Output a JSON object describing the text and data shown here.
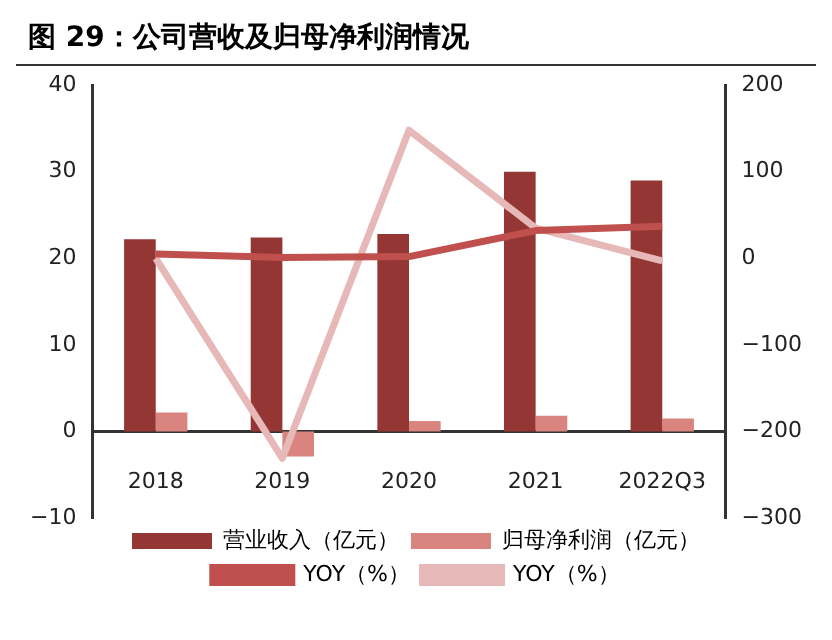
{
  "chart_data": {
    "type": "bar",
    "title": "图 29：公司营收及归母净利润情况",
    "categories": [
      "2018",
      "2019",
      "2020",
      "2021",
      "2022Q3"
    ],
    "series": [
      {
        "name": "营业收入（亿元）",
        "color": "#943634",
        "values": [
          22.2,
          22.4,
          22.8,
          30,
          29
        ]
      },
      {
        "name": "归母净利润（亿元）",
        "color": "#d9847f",
        "values": [
          2.2,
          -2.9,
          1.2,
          1.8,
          1.5
        ]
      },
      {
        "name": "YOY（%）",
        "type": "line",
        "axis": "y2",
        "color": "#c0504d",
        "values": [
          5,
          1,
          2,
          32,
          37
        ]
      },
      {
        "name": "YOY（%）",
        "type": "line",
        "axis": "y2",
        "color": "#e6b8b7",
        "values": [
          0,
          -231,
          148,
          35,
          -3
        ]
      }
    ],
    "ylim": [
      -10,
      40
    ],
    "yticks": [
      -10,
      0,
      10,
      20,
      30,
      40
    ],
    "y2lim": [
      -300,
      200
    ],
    "y2ticks": [
      -300,
      -200,
      -100,
      0,
      100,
      200
    ],
    "grid": false,
    "legend": "bottom",
    "marker": "none"
  }
}
